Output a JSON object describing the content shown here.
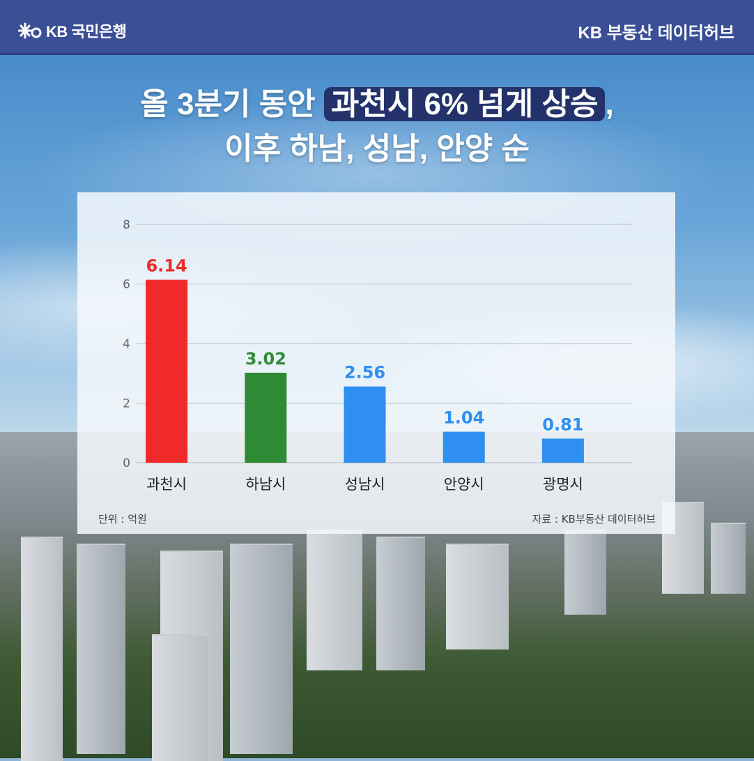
{
  "header": {
    "bank_logo_text": "KB 국민은행",
    "brand_label": "KB 부동산  데이터허브"
  },
  "title": {
    "line1_prefix": "올 3분기 동안 ",
    "line1_highlight": "과천시 6% 넘게 상승",
    "line1_suffix": ",",
    "line2": "이후 하남, 성남, 안양 순"
  },
  "footer": {
    "unit": "단위 : 억원",
    "source": "자료 : KB부동산 데이터허브"
  },
  "colors": {
    "header_bg": "#3a4f95",
    "highlight_bg": "#23326b",
    "red": "#f02a2a",
    "green": "#2e8b35",
    "blue": "#2f8ff0"
  },
  "chart_data": {
    "type": "bar",
    "title": "",
    "xlabel": "",
    "ylabel": "",
    "categories": [
      "과천시",
      "하남시",
      "성남시",
      "안양시",
      "광명시"
    ],
    "values": [
      6.14,
      3.02,
      2.56,
      1.04,
      0.81
    ],
    "value_labels": [
      "6.14",
      "3.02",
      "2.56",
      "1.04",
      "0.81"
    ],
    "bar_colors": [
      "#f02a2a",
      "#2e8b35",
      "#2f8ff0",
      "#2f8ff0",
      "#2f8ff0"
    ],
    "ylim": [
      0,
      8
    ],
    "yticks": [
      0,
      2,
      4,
      6,
      8
    ],
    "grid": true,
    "legend": "none"
  }
}
